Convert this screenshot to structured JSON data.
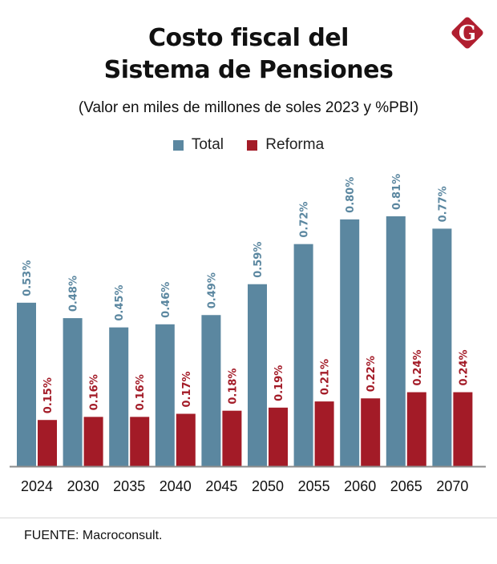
{
  "header": {
    "title_line1": "Costo fiscal del",
    "title_line2": "Sistema de Pensiones",
    "subtitle": "(Valor en miles de millones de soles 2023 y %PBI)"
  },
  "logo": {
    "letter": "G",
    "icon": "gestion-logo-icon",
    "color": "#b01e2f"
  },
  "footer": {
    "source": "FUENTE: Macroconsult."
  },
  "chart_data": {
    "type": "bar",
    "title": "Costo fiscal del Sistema de Pensiones",
    "subtitle": "(Valor en miles de millones de soles 2023 y %PBI)",
    "xlabel": "",
    "ylabel": "",
    "categories": [
      "2024",
      "2030",
      "2035",
      "2040",
      "2045",
      "2050",
      "2055",
      "2060",
      "2065",
      "2070"
    ],
    "series": [
      {
        "name": "Total",
        "color": "#5b87a0",
        "values": [
          0.53,
          0.48,
          0.45,
          0.46,
          0.49,
          0.59,
          0.72,
          0.8,
          0.81,
          0.77
        ],
        "labels": [
          "0.53%",
          "0.48%",
          "0.45%",
          "0.46%",
          "0.49%",
          "0.59%",
          "0.72%",
          "0.80%",
          "0.81%",
          "0.77%"
        ]
      },
      {
        "name": "Reforma",
        "color": "#a31b27",
        "values": [
          0.15,
          0.16,
          0.16,
          0.17,
          0.18,
          0.19,
          0.21,
          0.22,
          0.24,
          0.24
        ],
        "labels": [
          "0.15%",
          "0.16%",
          "0.16%",
          "0.17%",
          "0.18%",
          "0.19%",
          "0.21%",
          "0.22%",
          "0.24%",
          "0.24%"
        ]
      }
    ],
    "ylim": [
      0,
      1.0
    ],
    "grid": false,
    "legend": "top-center",
    "data_labels": "rotated-vertical-above-bars"
  }
}
